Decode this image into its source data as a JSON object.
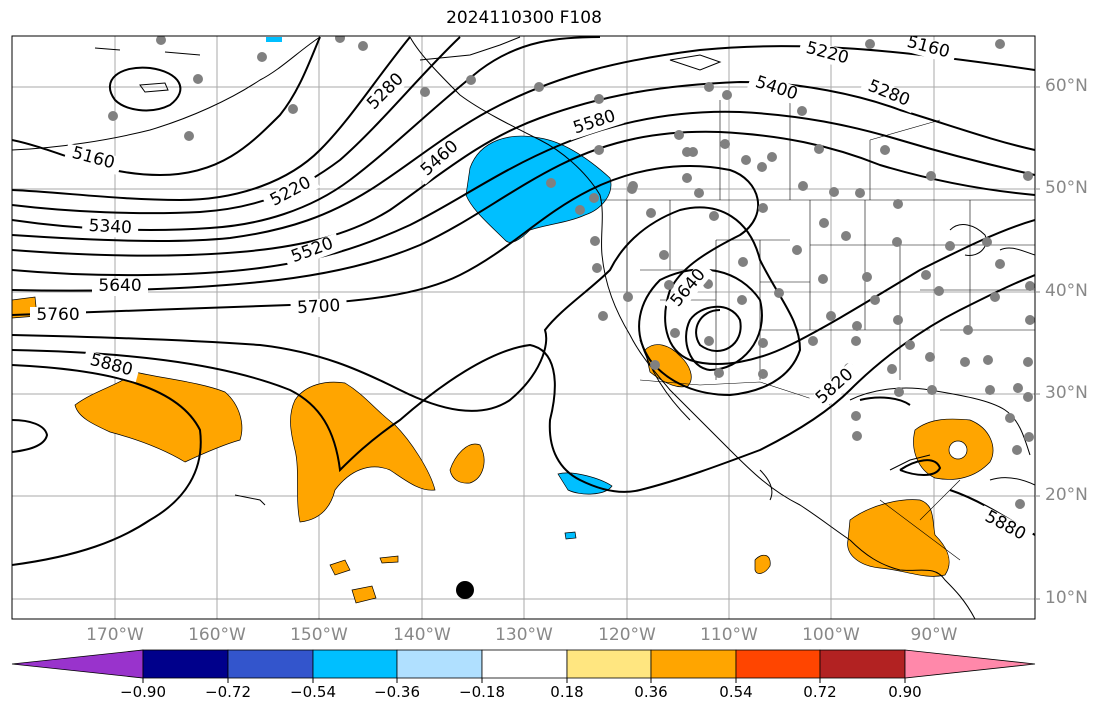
{
  "title": "2024110300 F108",
  "map": {
    "lat_labels": [
      "60°N",
      "50°N",
      "40°N",
      "30°N",
      "20°N",
      "10°N"
    ],
    "lon_labels": [
      "170°W",
      "160°W",
      "150°W",
      "140°W",
      "130°W",
      "120°W",
      "110°W",
      "100°W",
      "90°W"
    ],
    "contour_labels": [
      "5160",
      "5160",
      "5220",
      "5220",
      "5280",
      "5280",
      "5340",
      "5400",
      "5460",
      "5520",
      "5580",
      "5640",
      "5640",
      "5700",
      "5760",
      "5820",
      "5880",
      "5880"
    ],
    "shading_colors": {
      "positive_036": "#ffa500",
      "negative_054": "#00bfff"
    }
  },
  "colorbar": {
    "colors": [
      "#9933cc",
      "#00008b",
      "#3355cc",
      "#00bfff",
      "#b0e0ff",
      "#ffffff",
      "#ffe680",
      "#ffa500",
      "#ff4500",
      "#b22222",
      "#ff88aa"
    ],
    "tick_labels": [
      "−0.90",
      "−0.72",
      "−0.54",
      "−0.36",
      "−0.18",
      "0.18",
      "0.36",
      "0.54",
      "0.72",
      "0.90"
    ]
  }
}
